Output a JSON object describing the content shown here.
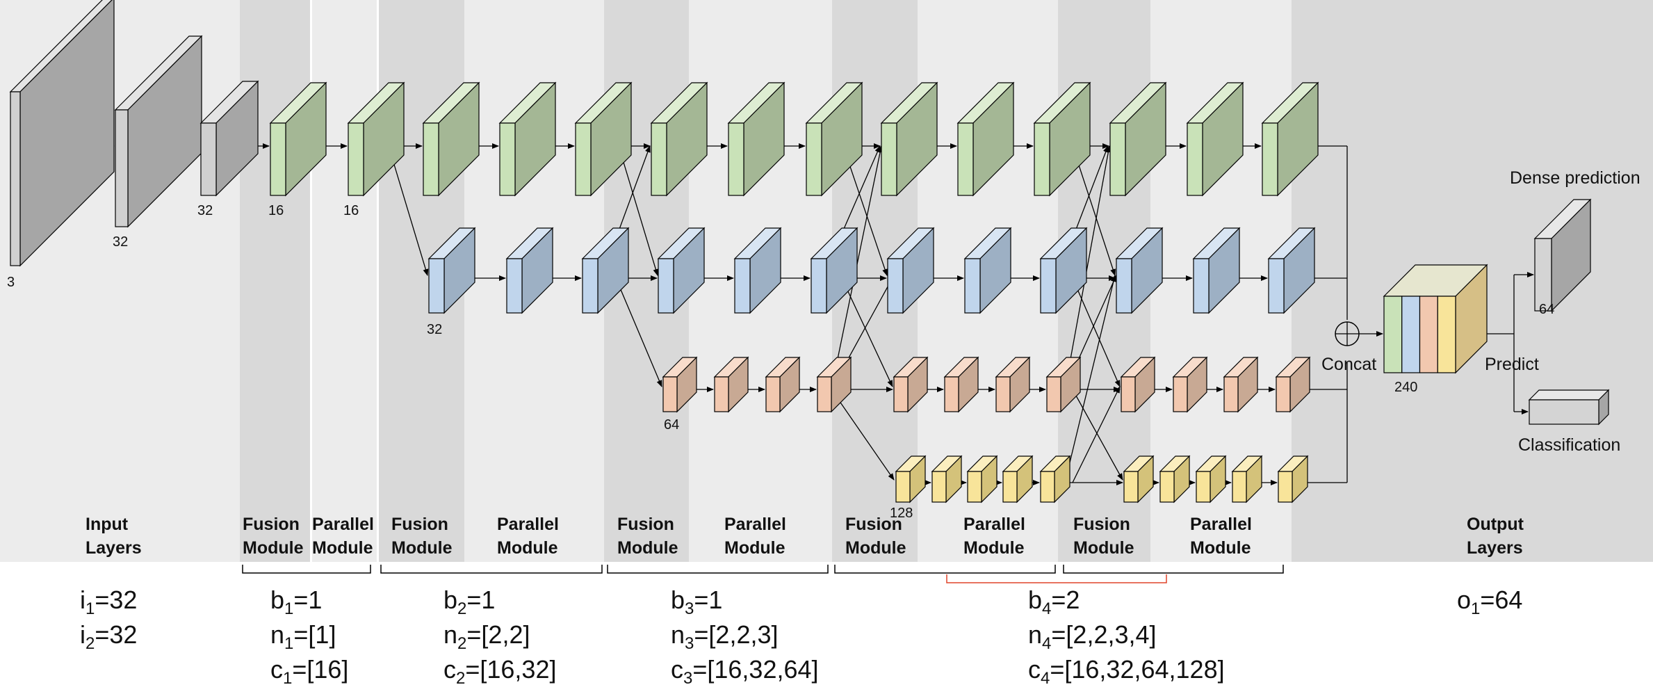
{
  "colors": {
    "gray_block": "#a6a6a6",
    "light_gray_block": "#c8c8c8",
    "green": "#c9e2b8",
    "green_dark": "#a4b795",
    "blue": "#c0d5ec",
    "blue_dark": "#9db0c4",
    "orange": "#f2c8af",
    "orange_dark": "#c8a994",
    "yellow": "#f8e49a",
    "yellow_dark": "#d4c27a",
    "tan": "#d6bf86",
    "bg_light": "#ececec",
    "bg_dark": "#d9d9d9",
    "bracket": "#000000",
    "bracket_red": "#e0442a"
  },
  "feature_labels": {
    "input_3": "3",
    "input_32a": "32",
    "input_32b": "32",
    "green_16a": "16",
    "green_16b": "16",
    "blue_32": "32",
    "orange_64": "64",
    "yellow_128": "128",
    "concat_240": "240",
    "dense_64": "64"
  },
  "output_labels": {
    "dense_prediction": "Dense prediction",
    "classification": "Classification",
    "concat": "Concat",
    "predict": "Predict"
  },
  "stages": {
    "input_line1": "Input",
    "input_line2": "Layers",
    "fusion_line1": "Fusion",
    "fusion_line2": "Module",
    "parallel_line1": "Parallel",
    "parallel_line2": "Module",
    "output_line1": "Output",
    "output_line2": "Layers"
  },
  "params": {
    "i1": {
      "base": "i",
      "sub": "1",
      "val": "=32"
    },
    "i2": {
      "base": "i",
      "sub": "2",
      "val": "=32"
    },
    "b1": {
      "base": "b",
      "sub": "1",
      "val": "=1"
    },
    "n1": {
      "base": "n",
      "sub": "1",
      "val": "=[1]"
    },
    "c1": {
      "base": "c",
      "sub": "1",
      "val": "=[16]"
    },
    "b2": {
      "base": "b",
      "sub": "2",
      "val": "=1"
    },
    "n2": {
      "base": "n",
      "sub": "2",
      "val": "=[2,2]"
    },
    "c2": {
      "base": "c",
      "sub": "2",
      "val": "=[16,32]"
    },
    "b3": {
      "base": "b",
      "sub": "3",
      "val": "=1"
    },
    "n3": {
      "base": "n",
      "sub": "3",
      "val": "=[2,2,3]"
    },
    "c3": {
      "base": "c",
      "sub": "3",
      "val": "=[16,32,64]"
    },
    "b4": {
      "base": "b",
      "sub": "4",
      "val": "=2"
    },
    "n4": {
      "base": "n",
      "sub": "4",
      "val": "=[2,2,3,4]"
    },
    "c4": {
      "base": "c",
      "sub": "4",
      "val": "=[16,32,64,128]"
    },
    "o1": {
      "base": "o",
      "sub": "1",
      "val": "=64"
    }
  }
}
